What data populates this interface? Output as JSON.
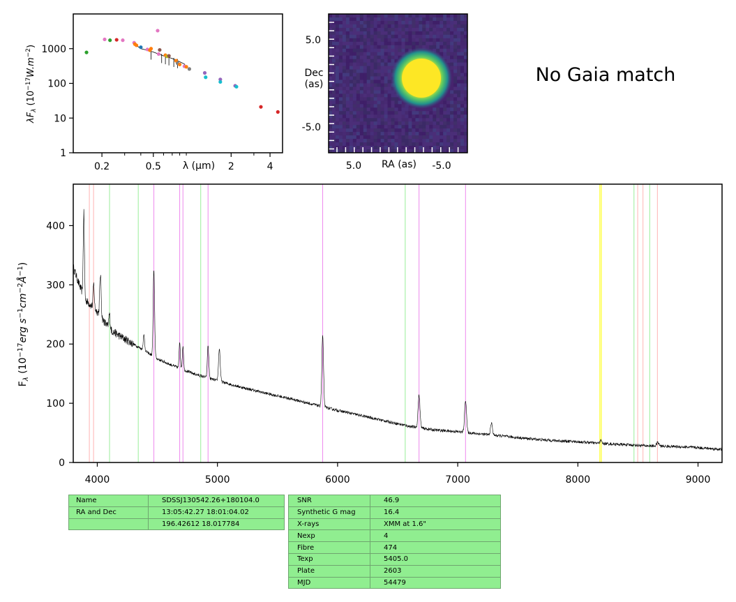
{
  "message": "No Gaia match",
  "chart_data": [
    {
      "type": "scatter",
      "xlabel": "λ (μm)",
      "ylabel": "λF_λ (10^-17 W.m^-2)",
      "xscale": "log",
      "yscale": "log",
      "xlim": [
        0.12,
        5.0
      ],
      "ylim": [
        1,
        10000
      ],
      "xticks": [
        "0.2",
        "0.5",
        "2",
        "4"
      ],
      "yticks": [
        "1",
        "10",
        "100",
        "1000"
      ],
      "model_curve": [
        [
          0.37,
          1400
        ],
        [
          0.38,
          1150
        ],
        [
          0.4,
          1000
        ],
        [
          0.45,
          900
        ],
        [
          0.5,
          800
        ],
        [
          0.55,
          700
        ],
        [
          0.6,
          620
        ],
        [
          0.7,
          520
        ],
        [
          0.8,
          420
        ],
        [
          0.87,
          360
        ],
        [
          0.9,
          300
        ]
      ],
      "points": [
        {
          "x": 0.152,
          "y": 780,
          "color": "#2ca02c"
        },
        {
          "x": 0.231,
          "y": 1750,
          "color": "#2ca02c"
        },
        {
          "x": 0.21,
          "y": 1850,
          "color": "#e377c2"
        },
        {
          "x": 0.26,
          "y": 1800,
          "color": "#d62728"
        },
        {
          "x": 0.29,
          "y": 1750,
          "color": "#e377c2"
        },
        {
          "x": 0.355,
          "y": 1480,
          "color": "#e377c2"
        },
        {
          "x": 0.36,
          "y": 1350,
          "color": "#ff7f0e"
        },
        {
          "x": 0.37,
          "y": 1250,
          "color": "#ff7f0e"
        },
        {
          "x": 0.4,
          "y": 1100,
          "color": "#1f77b4"
        },
        {
          "x": 0.45,
          "y": 950,
          "color": "#e377c2"
        },
        {
          "x": 0.47,
          "y": 900,
          "color": "#ff7f0e"
        },
        {
          "x": 0.48,
          "y": 1000,
          "color": "#ff7f0e"
        },
        {
          "x": 0.54,
          "y": 3300,
          "color": "#e377c2"
        },
        {
          "x": 0.55,
          "y": 700,
          "color": "#e377c2"
        },
        {
          "x": 0.56,
          "y": 920,
          "color": "#8c564b"
        },
        {
          "x": 0.62,
          "y": 650,
          "color": "#ff7f0e"
        },
        {
          "x": 0.64,
          "y": 600,
          "color": "#bcbd22"
        },
        {
          "x": 0.66,
          "y": 620,
          "color": "#8c564b"
        },
        {
          "x": 0.75,
          "y": 450,
          "color": "#ff7f0e"
        },
        {
          "x": 0.77,
          "y": 380,
          "color": "#7f7f7f"
        },
        {
          "x": 0.8,
          "y": 350,
          "color": "#ff7f0e"
        },
        {
          "x": 0.87,
          "y": 310,
          "color": "#e377c2"
        },
        {
          "x": 0.9,
          "y": 300,
          "color": "#ff7f0e"
        },
        {
          "x": 0.95,
          "y": 260,
          "color": "#7f7f7f"
        },
        {
          "x": 1.25,
          "y": 200,
          "color": "#9467bd"
        },
        {
          "x": 1.27,
          "y": 150,
          "color": "#17becf"
        },
        {
          "x": 1.65,
          "y": 130,
          "color": "#9467bd"
        },
        {
          "x": 1.65,
          "y": 110,
          "color": "#17becf"
        },
        {
          "x": 2.15,
          "y": 85,
          "color": "#9467bd"
        },
        {
          "x": 2.2,
          "y": 80,
          "color": "#17becf"
        },
        {
          "x": 3.4,
          "y": 21,
          "color": "#d62728"
        },
        {
          "x": 4.6,
          "y": 15,
          "color": "#d62728"
        }
      ]
    },
    {
      "type": "heatmap",
      "xlabel": "RA (as)",
      "ylabel": "Dec\n(as)",
      "xticks": [
        "5.0",
        "-5.0"
      ],
      "yticks": [
        "5.0",
        "-5.0"
      ]
    },
    {
      "type": "line",
      "xlabel": "",
      "ylabel": "F_λ (10^-17 erg s^-1 cm^-2 Å^-1)",
      "xlim": [
        3800,
        9200
      ],
      "ylim": [
        0,
        470
      ],
      "xticks": [
        "4000",
        "5000",
        "6000",
        "7000",
        "8000",
        "9000"
      ],
      "yticks": [
        "0",
        "100",
        "200",
        "300",
        "400"
      ],
      "continuum": [
        [
          3800,
          330
        ],
        [
          3850,
          300
        ],
        [
          3900,
          275
        ],
        [
          4000,
          255
        ],
        [
          4100,
          225
        ],
        [
          4200,
          212
        ],
        [
          4300,
          200
        ],
        [
          4400,
          188
        ],
        [
          4500,
          175
        ],
        [
          4600,
          166
        ],
        [
          4700,
          158
        ],
        [
          4800,
          150
        ],
        [
          5000,
          138
        ],
        [
          5200,
          127
        ],
        [
          5400,
          117
        ],
        [
          5600,
          108
        ],
        [
          5800,
          98
        ],
        [
          6000,
          88
        ],
        [
          6200,
          79
        ],
        [
          6400,
          70
        ],
        [
          6600,
          61
        ],
        [
          6800,
          55
        ],
        [
          7000,
          52
        ],
        [
          7200,
          48
        ],
        [
          7400,
          44
        ],
        [
          7600,
          40
        ],
        [
          7800,
          37
        ],
        [
          8000,
          35
        ],
        [
          8200,
          32
        ],
        [
          8400,
          30
        ],
        [
          8600,
          28
        ],
        [
          8800,
          27
        ],
        [
          9000,
          25
        ],
        [
          9200,
          22
        ]
      ],
      "emission_lines": [
        {
          "center": 3888,
          "peak": 140,
          "sigma": 5
        },
        {
          "center": 3970,
          "peak": 40,
          "sigma": 5
        },
        {
          "center": 4026,
          "peak": 70,
          "sigma": 6
        },
        {
          "center": 4101,
          "peak": 25,
          "sigma": 6
        },
        {
          "center": 4388,
          "peak": 25,
          "sigma": 6
        },
        {
          "center": 4471,
          "peak": 145,
          "sigma": 6
        },
        {
          "center": 4686,
          "peak": 45,
          "sigma": 5
        },
        {
          "center": 4713,
          "peak": 40,
          "sigma": 5
        },
        {
          "center": 4922,
          "peak": 55,
          "sigma": 6
        },
        {
          "center": 5016,
          "peak": 55,
          "sigma": 7
        },
        {
          "center": 5876,
          "peak": 120,
          "sigma": 7
        },
        {
          "center": 6678,
          "peak": 55,
          "sigma": 8
        },
        {
          "center": 7065,
          "peak": 55,
          "sigma": 8
        },
        {
          "center": 7281,
          "peak": 20,
          "sigma": 8
        },
        {
          "center": 8190,
          "peak": 5,
          "sigma": 8
        },
        {
          "center": 8665,
          "peak": 6,
          "sigma": 10
        }
      ],
      "markers": [
        {
          "x": 3934,
          "color": "#ffb3b3"
        },
        {
          "x": 3969,
          "color": "#ffb3b3"
        },
        {
          "x": 4102,
          "color": "#99ee99"
        },
        {
          "x": 4341,
          "color": "#99ee99"
        },
        {
          "x": 4471,
          "color": "#ee88ee"
        },
        {
          "x": 4686,
          "color": "#ee88ee"
        },
        {
          "x": 4713,
          "color": "#ee88ee"
        },
        {
          "x": 4861,
          "color": "#99ee99"
        },
        {
          "x": 4922,
          "color": "#ee88ee"
        },
        {
          "x": 5876,
          "color": "#ee88ee"
        },
        {
          "x": 6563,
          "color": "#99ee99"
        },
        {
          "x": 6678,
          "color": "#ee88ee"
        },
        {
          "x": 7065,
          "color": "#ee88ee"
        },
        {
          "x": 8183,
          "color": "#ffff00"
        },
        {
          "x": 8195,
          "color": "#ffff00"
        },
        {
          "x": 8467,
          "color": "#99ee99"
        },
        {
          "x": 8498,
          "color": "#ffb3b3"
        },
        {
          "x": 8542,
          "color": "#ffb3b3"
        },
        {
          "x": 8598,
          "color": "#99ee99"
        },
        {
          "x": 8662,
          "color": "#ffb3b3"
        }
      ]
    }
  ],
  "info_left": [
    [
      "Name",
      "SDSSJ130542.26+180104.0"
    ],
    [
      "RA and Dec",
      "13:05:42.27    18:01:04.02"
    ],
    [
      "",
      "196.42612    18.017784"
    ]
  ],
  "info_right": [
    [
      "SNR",
      "46.9"
    ],
    [
      "Synthetic G mag",
      "16.4"
    ],
    [
      "X-rays",
      "XMM at 1.6\""
    ],
    [
      "Nexp",
      "4"
    ],
    [
      "Fibre",
      "474"
    ],
    [
      "Texp",
      "5405.0"
    ],
    [
      "Plate",
      "2603"
    ],
    [
      "MJD",
      "54479"
    ]
  ]
}
